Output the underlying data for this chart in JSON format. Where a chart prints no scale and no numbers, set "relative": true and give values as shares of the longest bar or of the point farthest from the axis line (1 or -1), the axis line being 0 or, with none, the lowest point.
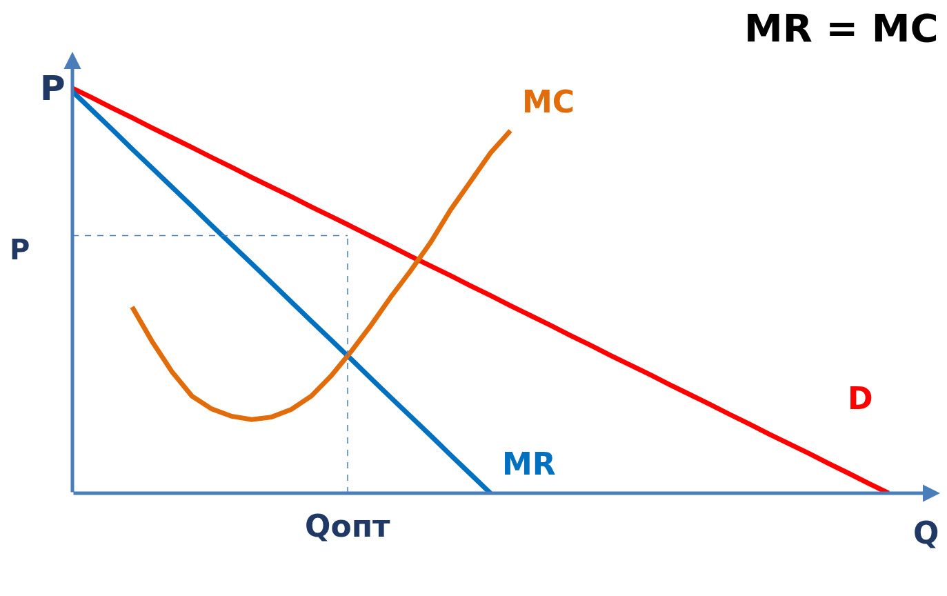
{
  "chart_data": {
    "type": "line",
    "title": "MR = MC",
    "xlabel": "Q",
    "ylabel": "P",
    "relative": true,
    "categories": [
      null,
      null,
      null,
      null,
      null,
      null,
      null,
      null,
      null,
      null,
      null,
      null,
      null,
      null,
      null,
      null,
      null,
      null,
      null,
      null,
      null,
      null,
      null,
      null,
      null,
      null,
      null,
      null,
      null,
      null,
      null,
      null,
      null,
      null,
      null,
      null,
      null,
      null,
      null,
      null,
      null,
      null
    ],
    "series": [
      {
        "name": "D",
        "color": "#ff0000",
        "values": [
          1,
          0.976,
          0.951,
          0.927,
          0.902,
          0.878,
          0.854,
          0.829,
          0.805,
          0.78,
          0.756,
          0.732,
          0.707,
          0.683,
          0.659,
          0.634,
          0.61,
          0.585,
          0.561,
          0.537,
          0.512,
          0.488,
          0.463,
          0.439,
          0.415,
          0.39,
          0.366,
          0.341,
          0.317,
          0.293,
          0.268,
          0.244,
          0.22,
          0.195,
          0.171,
          0.146,
          0.122,
          0.098,
          0.073,
          0.049,
          0.024,
          0
        ]
      },
      {
        "name": "MR",
        "color": "#0070c0",
        "values": [
          0.992,
          0.945,
          0.898,
          0.85,
          0.803,
          0.756,
          0.709,
          0.661,
          0.614,
          0.567,
          0.52,
          0.472,
          0.425,
          0.378,
          0.331,
          0.283,
          0.236,
          0.189,
          0.142,
          0.094,
          0.047,
          0,
          null,
          null,
          null,
          null,
          null,
          null,
          null,
          null,
          null,
          null,
          null,
          null,
          null,
          null,
          null,
          null,
          null,
          null,
          null,
          null
        ]
      },
      {
        "name": "MC",
        "color": "#e36c0a",
        "values": [
          null,
          null,
          null,
          0.46,
          0.375,
          0.3,
          0.24,
          0.208,
          0.19,
          0.182,
          0.188,
          0.207,
          0.24,
          0.29,
          0.35,
          0.415,
          0.485,
          0.55,
          0.62,
          0.7,
          0.77,
          0.84,
          0.895,
          null,
          null,
          null,
          null,
          null,
          null,
          null,
          null,
          null,
          null,
          null,
          null,
          null,
          null,
          null,
          null,
          null,
          null,
          null
        ]
      }
    ],
    "ref_lines": [
      {
        "axis": "y",
        "value": 0.636,
        "label": "P",
        "color": "#4a7ebb",
        "line_style": "dashed"
      }
    ],
    "annotations": [
      "Qопт"
    ]
  }
}
